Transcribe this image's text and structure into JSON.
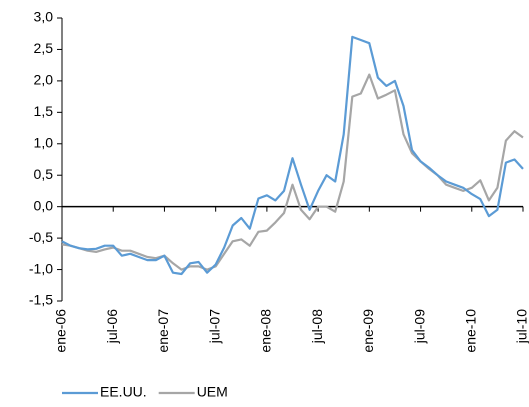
{
  "chart_data": {
    "type": "line",
    "categories": [
      "ene-06",
      null,
      null,
      null,
      null,
      null,
      "jul-06",
      null,
      null,
      null,
      null,
      null,
      "ene-07",
      null,
      null,
      null,
      null,
      null,
      "jul-07",
      null,
      null,
      null,
      null,
      null,
      "ene-08",
      null,
      null,
      null,
      null,
      null,
      "jul-08",
      null,
      null,
      null,
      null,
      null,
      "ene-09",
      null,
      null,
      null,
      null,
      null,
      "jul-09",
      null,
      null,
      null,
      null,
      null,
      "ene-10",
      null,
      null,
      null,
      null,
      null,
      "jul-10"
    ],
    "series": [
      {
        "name": "EE.UU.",
        "color": "#5b9bd5",
        "values": [
          -0.55,
          -0.62,
          -0.66,
          -0.68,
          -0.67,
          -0.62,
          -0.62,
          -0.78,
          -0.75,
          -0.8,
          -0.85,
          -0.85,
          -0.78,
          -1.05,
          -1.07,
          -0.9,
          -0.88,
          -1.05,
          -0.92,
          -0.65,
          -0.3,
          -0.18,
          -0.35,
          0.13,
          0.18,
          0.1,
          0.25,
          0.77,
          0.35,
          -0.05,
          0.25,
          0.5,
          0.4,
          1.15,
          2.7,
          2.65,
          2.6,
          2.05,
          1.92,
          2.0,
          1.6,
          0.9,
          0.72,
          0.62,
          0.5,
          0.4,
          0.35,
          0.3,
          0.2,
          0.12,
          -0.15,
          -0.05,
          0.7,
          0.75,
          0.6
        ]
      },
      {
        "name": "UEM",
        "color": "#a6a6a6",
        "values": [
          -0.6,
          -0.62,
          -0.66,
          -0.7,
          -0.72,
          -0.68,
          -0.65,
          -0.7,
          -0.7,
          -0.75,
          -0.8,
          -0.82,
          -0.78,
          -0.9,
          -1.0,
          -0.95,
          -0.95,
          -1.0,
          -0.95,
          -0.75,
          -0.55,
          -0.52,
          -0.62,
          -0.4,
          -0.38,
          -0.25,
          -0.1,
          0.35,
          -0.05,
          -0.2,
          0.0,
          0.0,
          -0.08,
          0.4,
          1.75,
          1.8,
          2.1,
          1.72,
          1.78,
          1.85,
          1.15,
          0.85,
          0.72,
          0.6,
          0.5,
          0.35,
          0.3,
          0.25,
          0.3,
          0.42,
          0.1,
          0.3,
          1.05,
          1.2,
          1.1
        ]
      }
    ],
    "ylim": [
      -1.5,
      3.0
    ],
    "yticks": [
      {
        "value": -1.5,
        "label": "-1,5"
      },
      {
        "value": -1.0,
        "label": "-1,0"
      },
      {
        "value": -0.5,
        "label": "-0,5"
      },
      {
        "value": 0.0,
        "label": "0,0"
      },
      {
        "value": 0.5,
        "label": "0,5"
      },
      {
        "value": 1.0,
        "label": "1,0"
      },
      {
        "value": 1.5,
        "label": "1,5"
      },
      {
        "value": 2.0,
        "label": "2,0"
      },
      {
        "value": 2.5,
        "label": "2,5"
      },
      {
        "value": 3.0,
        "label": "3,0"
      }
    ],
    "legend": "bottom"
  }
}
